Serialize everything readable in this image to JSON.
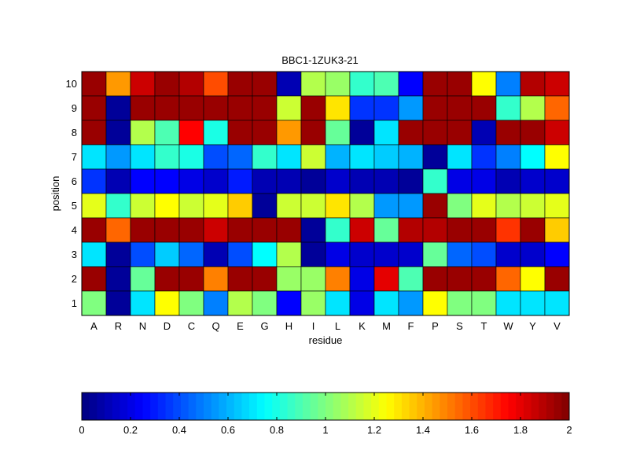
{
  "chart_data": {
    "type": "heatmap",
    "title": "BBC1-1ZUK3-21",
    "xlabel": "residue",
    "ylabel": "position",
    "x_categories": [
      "A",
      "R",
      "N",
      "D",
      "C",
      "Q",
      "E",
      "G",
      "H",
      "I",
      "L",
      "K",
      "M",
      "F",
      "P",
      "S",
      "T",
      "W",
      "Y",
      "V"
    ],
    "y_categories": [
      "1",
      "2",
      "3",
      "4",
      "5",
      "6",
      "7",
      "8",
      "9",
      "10"
    ],
    "rows_top_to_bottom": [
      "10",
      "9",
      "8",
      "7",
      "6",
      "5",
      "4",
      "3",
      "2",
      "1"
    ],
    "values": [
      [
        1.95,
        1.45,
        1.85,
        1.95,
        1.9,
        1.6,
        1.95,
        1.95,
        0.1,
        1.1,
        1.05,
        0.85,
        0.9,
        0.25,
        1.95,
        1.95,
        1.25,
        0.5,
        1.9,
        1.85
      ],
      [
        1.95,
        0.05,
        1.95,
        1.95,
        1.95,
        1.95,
        1.95,
        1.95,
        1.15,
        1.95,
        1.3,
        0.35,
        0.35,
        0.55,
        1.95,
        1.95,
        1.95,
        0.85,
        1.1,
        1.55
      ],
      [
        1.95,
        0.05,
        1.1,
        0.9,
        1.75,
        0.8,
        1.95,
        1.95,
        1.45,
        1.95,
        0.95,
        0.05,
        0.7,
        1.95,
        1.95,
        1.95,
        0.1,
        1.95,
        1.95,
        1.85
      ],
      [
        0.7,
        0.55,
        0.7,
        0.85,
        0.8,
        0.4,
        0.45,
        0.85,
        0.7,
        1.15,
        0.6,
        0.7,
        0.65,
        0.6,
        0.05,
        0.7,
        0.35,
        0.5,
        0.75,
        1.25
      ],
      [
        0.35,
        0.1,
        0.25,
        0.25,
        0.2,
        0.15,
        0.3,
        0.1,
        0.1,
        0.05,
        0.15,
        0.1,
        0.1,
        0.05,
        0.85,
        0.2,
        0.2,
        0.1,
        0.15,
        0.15
      ],
      [
        1.2,
        0.85,
        1.15,
        1.25,
        1.15,
        1.2,
        1.35,
        0.05,
        1.15,
        1.15,
        1.3,
        1.1,
        0.55,
        0.55,
        1.95,
        1.0,
        1.2,
        1.1,
        1.15,
        1.2
      ],
      [
        1.95,
        1.55,
        1.95,
        1.95,
        1.95,
        1.85,
        1.95,
        1.95,
        1.95,
        0.05,
        0.85,
        1.85,
        0.95,
        1.9,
        1.9,
        1.95,
        1.95,
        1.65,
        1.95,
        1.35
      ],
      [
        0.7,
        0.05,
        0.4,
        0.65,
        0.45,
        0.1,
        0.4,
        0.75,
        1.1,
        0.05,
        0.2,
        0.15,
        0.15,
        0.15,
        0.95,
        0.45,
        0.4,
        0.15,
        0.15,
        0.25
      ],
      [
        1.95,
        0.05,
        0.95,
        1.95,
        1.95,
        1.5,
        1.95,
        1.95,
        1.05,
        1.05,
        1.5,
        0.2,
        1.8,
        0.9,
        1.95,
        1.95,
        1.95,
        1.55,
        1.25,
        1.95
      ],
      [
        1.0,
        0.05,
        0.7,
        1.25,
        1.0,
        0.5,
        1.1,
        1.0,
        0.25,
        1.05,
        0.7,
        0.2,
        0.7,
        0.55,
        1.25,
        1.0,
        1.0,
        0.7,
        0.7,
        0.7
      ]
    ],
    "colormap": "jet",
    "colorbar": {
      "min": 0,
      "max": 2,
      "ticks": [
        "0",
        "0.2",
        "0.4",
        "0.6",
        "0.8",
        "1",
        "1.2",
        "1.4",
        "1.6",
        "1.8",
        "2"
      ]
    },
    "grid": true,
    "legend_placement": "bottom"
  }
}
